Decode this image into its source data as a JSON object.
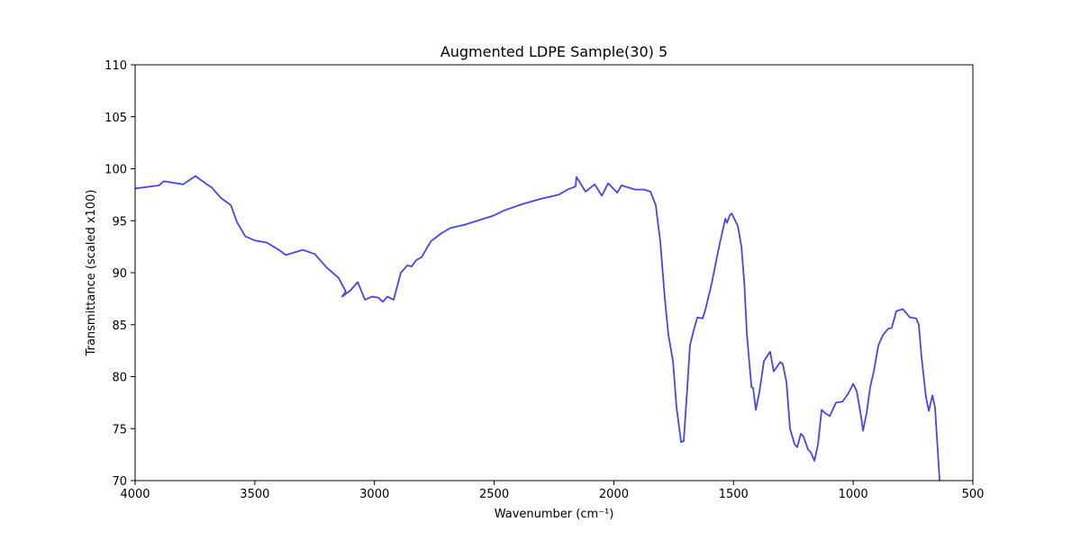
{
  "chart_data": {
    "type": "line",
    "title": "Augmented LDPE Sample(30) 5",
    "x_label": "Wavenumber (cm⁻¹)",
    "y_label": "Transmittance (scaled x100)",
    "xlim": [
      4000,
      500
    ],
    "ylim": [
      70,
      110
    ],
    "xticks": [
      4000,
      3500,
      3000,
      2500,
      2000,
      1500,
      1000,
      500
    ],
    "yticks": [
      70,
      75,
      80,
      85,
      90,
      95,
      100,
      105,
      110
    ],
    "x": [
      4000,
      3900,
      3880,
      3800,
      3748,
      3700,
      3680,
      3642,
      3600,
      3575,
      3540,
      3500,
      3450,
      3400,
      3370,
      3300,
      3250,
      3200,
      3150,
      3120,
      3135,
      3100,
      3070,
      3040,
      3010,
      2984,
      2965,
      2946,
      2920,
      2890,
      2863,
      2845,
      2826,
      2803,
      2765,
      2720,
      2683,
      2626,
      2570,
      2502,
      2457,
      2382,
      2306,
      2231,
      2193,
      2160,
      2156,
      2118,
      2080,
      2050,
      2024,
      1986,
      1968,
      1911,
      1874,
      1847,
      1825,
      1806,
      1787,
      1772,
      1753,
      1738,
      1719,
      1708,
      1693,
      1682,
      1666,
      1651,
      1629,
      1617,
      1591,
      1565,
      1546,
      1534,
      1527,
      1516,
      1508,
      1497,
      1482,
      1467,
      1455,
      1444,
      1425,
      1418,
      1407,
      1392,
      1373,
      1347,
      1332,
      1305,
      1294,
      1279,
      1264,
      1245,
      1234,
      1219,
      1207,
      1189,
      1177,
      1162,
      1147,
      1132,
      1117,
      1098,
      1072,
      1045,
      1023,
      1000,
      985,
      966,
      959,
      944,
      929,
      914,
      895,
      876,
      854,
      839,
      820,
      793,
      763,
      737,
      726,
      715,
      696,
      684,
      669,
      658,
      639
    ],
    "series": [
      {
        "name": "Transmittance",
        "color": "#4646e8",
        "values": [
          98.1,
          98.4,
          98.8,
          98.5,
          99.3,
          98.5,
          98.2,
          97.2,
          96.5,
          94.9,
          93.5,
          93.1,
          92.9,
          92.2,
          91.7,
          92.2,
          91.8,
          90.5,
          89.5,
          88.2,
          87.7,
          88.3,
          89.1,
          87.4,
          87.7,
          87.6,
          87.2,
          87.7,
          87.4,
          90.0,
          90.7,
          90.6,
          91.2,
          91.5,
          93.0,
          93.8,
          94.3,
          94.6,
          95.0,
          95.5,
          96.0,
          96.6,
          97.1,
          97.5,
          98.0,
          98.3,
          99.2,
          97.8,
          98.5,
          97.4,
          98.6,
          97.7,
          98.4,
          98.0,
          98.0,
          97.8,
          96.5,
          93.0,
          87.5,
          84.0,
          81.5,
          77.0,
          73.7,
          73.8,
          79.0,
          83.0,
          84.5,
          85.7,
          85.6,
          86.5,
          89.0,
          92.0,
          94.0,
          95.2,
          94.8,
          95.5,
          95.7,
          95.2,
          94.5,
          92.5,
          89.0,
          84.0,
          79.0,
          78.9,
          76.8,
          78.5,
          81.5,
          82.4,
          80.5,
          81.4,
          81.2,
          79.5,
          75.0,
          73.5,
          73.2,
          74.5,
          74.2,
          73.0,
          72.7,
          71.9,
          73.5,
          76.8,
          76.5,
          76.2,
          77.5,
          77.6,
          78.3,
          79.3,
          78.6,
          76.0,
          74.8,
          76.5,
          79.0,
          80.5,
          83.0,
          84.0,
          84.6,
          84.7,
          86.3,
          86.5,
          85.7,
          85.6,
          85.0,
          82.0,
          78.0,
          76.7,
          78.2,
          77.0,
          70.0
        ]
      }
    ]
  }
}
